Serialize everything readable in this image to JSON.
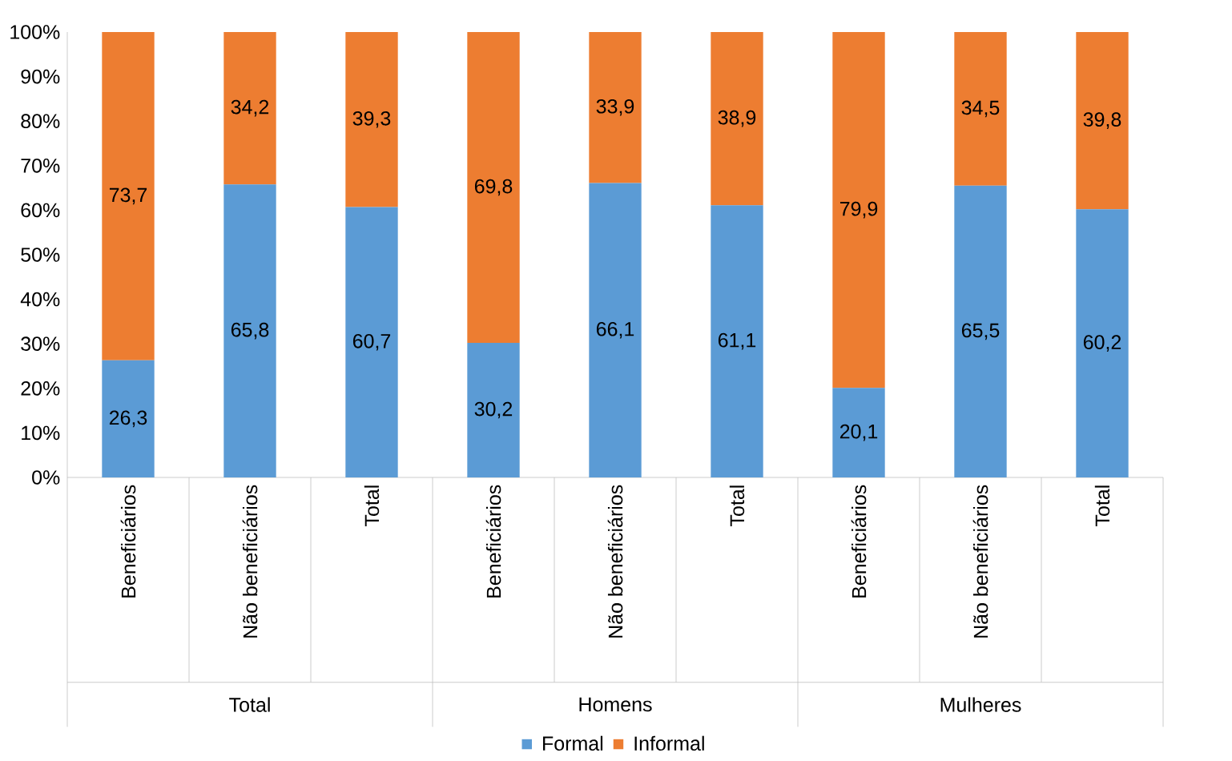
{
  "chart_data": {
    "type": "bar",
    "stacked": true,
    "categories": [
      "Beneficiários",
      "Não beneficiários",
      "Total",
      "Beneficiários",
      "Não beneficiários",
      "Total",
      "Beneficiários",
      "Não beneficiários",
      "Total"
    ],
    "series": [
      {
        "name": "Formal",
        "color": "#5b9bd5",
        "values": [
          26.3,
          65.8,
          60.7,
          30.2,
          66.1,
          61.1,
          20.1,
          65.5,
          60.2
        ],
        "value_labels": [
          "26,3",
          "65,8",
          "60,7",
          "30,2",
          "66,1",
          "61,1",
          "20,1",
          "65,5",
          "60,2"
        ]
      },
      {
        "name": "Informal",
        "color": "#ed7d31",
        "values": [
          73.7,
          34.2,
          39.3,
          69.8,
          33.9,
          38.9,
          79.9,
          34.5,
          39.8
        ],
        "value_labels": [
          "73,7",
          "34,2",
          "39,3",
          "69,8",
          "33,9",
          "38,9",
          "79,9",
          "34,5",
          "39,8"
        ]
      }
    ],
    "annotations": [
      "Total",
      "Homens",
      "Mulheres"
    ],
    "ylim": [
      0,
      100
    ],
    "yticks": [
      {
        "value": 0,
        "label": "0%"
      },
      {
        "value": 10,
        "label": "10%"
      },
      {
        "value": 20,
        "label": "20%"
      },
      {
        "value": 30,
        "label": "30%"
      },
      {
        "value": 40,
        "label": "40%"
      },
      {
        "value": 50,
        "label": "50%"
      },
      {
        "value": 60,
        "label": "60%"
      },
      {
        "value": 70,
        "label": "70%"
      },
      {
        "value": 80,
        "label": "80%"
      },
      {
        "value": 90,
        "label": "90%"
      },
      {
        "value": 100,
        "label": "100%"
      }
    ],
    "grid": false,
    "legend": "bottom"
  }
}
